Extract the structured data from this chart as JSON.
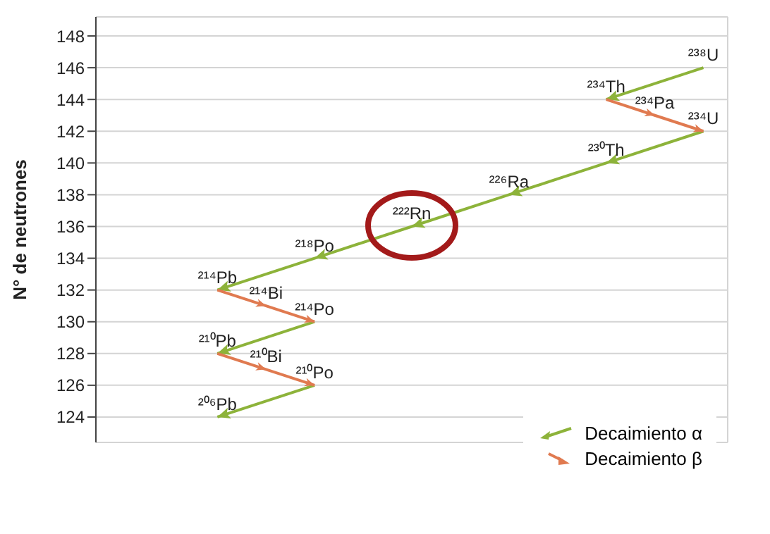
{
  "chart_data": {
    "type": "line",
    "ylabel": "N° de neutrones",
    "categories": [
      null,
      null,
      null,
      null,
      null,
      null,
      null,
      null,
      null,
      null,
      null,
      null,
      null
    ],
    "ylim": [
      122.4,
      149.2
    ],
    "yticks": [
      124,
      126,
      128,
      130,
      132,
      134,
      136,
      138,
      140,
      142,
      144,
      146,
      148
    ],
    "grid": true,
    "tick_labels": "y",
    "legend": "bottom right",
    "marker": "none",
    "series": [
      {
        "name": "Decaimiento α",
        "color": "#8db33a",
        "values": [
          null,
          null,
          null,
          null,
          null,
          null,
          null,
          null,
          null,
          null,
          144,
          null,
          146
        ]
      },
      {
        "color": "#8db33a",
        "values": [
          null,
          null,
          132,
          null,
          134,
          null,
          136,
          null,
          138,
          null,
          140,
          null,
          142
        ]
      },
      {
        "color": "#8db33a",
        "values": [
          null,
          null,
          128,
          null,
          130,
          null,
          null,
          null,
          null,
          null,
          null,
          null,
          null
        ]
      },
      {
        "color": "#8db33a",
        "values": [
          null,
          null,
          124,
          null,
          126,
          null,
          null,
          null,
          null,
          null,
          null,
          null,
          null
        ]
      },
      {
        "name": "Decaimiento β",
        "color": "#e07a50",
        "values": [
          null,
          null,
          null,
          null,
          null,
          null,
          null,
          null,
          null,
          null,
          144,
          143,
          142
        ]
      },
      {
        "color": "#e07a50",
        "values": [
          null,
          null,
          132,
          131,
          130,
          null,
          null,
          null,
          null,
          null,
          null,
          null,
          null
        ]
      },
      {
        "color": "#e07a50",
        "values": [
          null,
          null,
          128,
          127,
          126,
          null,
          null,
          null,
          null,
          null,
          null,
          null,
          null
        ]
      }
    ],
    "annotations": [
      {
        "text": "²³⁸U",
        "y": 146
      },
      {
        "text": "²³⁴Th",
        "y": 144
      },
      {
        "text": "²³⁴Pa",
        "y": 143
      },
      {
        "text": "²³⁴U",
        "y": 142
      },
      {
        "text": "²³⁰Th",
        "y": 140
      },
      {
        "text": "²²⁶Ra",
        "y": 138
      },
      {
        "text": "²²²Rn",
        "y": 136
      },
      {
        "text": "²¹⁸Po",
        "y": 134
      },
      {
        "text": "²¹⁴Pb",
        "y": 132
      },
      {
        "text": "²¹⁴Bi",
        "y": 131
      },
      {
        "text": "²¹⁴Po",
        "y": 130
      },
      {
        "text": "²¹⁰Pb",
        "y": 128
      },
      {
        "text": "²¹⁰Bi",
        "y": 127
      },
      {
        "text": "²¹⁰Po",
        "y": 126
      },
      {
        "text": "²⁰⁶Pb",
        "y": 124
      }
    ]
  }
}
